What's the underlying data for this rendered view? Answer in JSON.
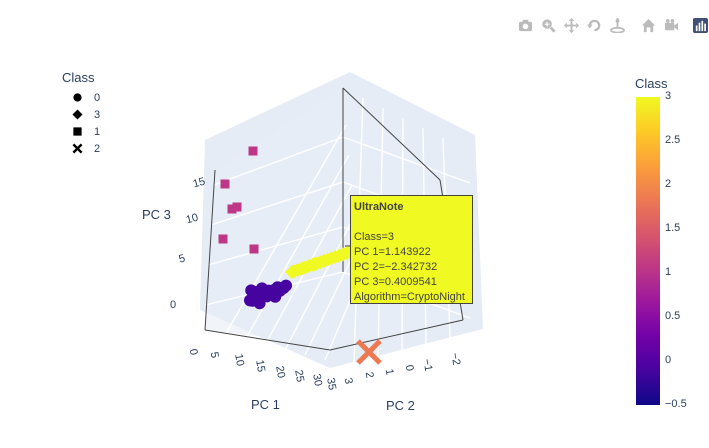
{
  "chart_data": {
    "type": "scatter",
    "title": "",
    "axes": {
      "x": {
        "label": "PC 1",
        "ticks": [
          "0",
          "5",
          "10",
          "15",
          "20",
          "25",
          "30",
          "35"
        ]
      },
      "y": {
        "label": "PC 2",
        "ticks": [
          "3",
          "2",
          "1",
          "0",
          "−1",
          "−2"
        ]
      },
      "z": {
        "label": "PC 3",
        "ticks": [
          "0",
          "5",
          "10",
          "15"
        ]
      }
    },
    "legend": {
      "title": "Class",
      "entries": [
        {
          "label": "0",
          "symbol": "circle"
        },
        {
          "label": "3",
          "symbol": "diamond"
        },
        {
          "label": "1",
          "symbol": "square"
        },
        {
          "label": "2",
          "symbol": "x"
        }
      ]
    },
    "colorbar": {
      "title": "Class",
      "range": [
        -0.5,
        3
      ],
      "ticks": [
        "3",
        "2.5",
        "2",
        "1.5",
        "1",
        "0.5",
        "0",
        "−0.5"
      ],
      "colors": [
        "#0d0887",
        "#46039f",
        "#7201a8",
        "#9c179e",
        "#bd3786",
        "#d8576b",
        "#ed7953",
        "#fb9f3a",
        "#fdca26",
        "#f0f921"
      ]
    },
    "series": [
      {
        "name": "0",
        "class": 0,
        "symbol": "circle",
        "color": "#46039f",
        "points": [
          [
            -0.3,
            0.4,
            -0.2
          ],
          [
            -0.2,
            0.6,
            0.1
          ],
          [
            0,
            0.4,
            0
          ],
          [
            0.4,
            0.2,
            0.3
          ],
          [
            0.8,
            0,
            0.5
          ],
          [
            1.2,
            -0.2,
            0.7
          ],
          [
            1.5,
            -0.5,
            1.0
          ],
          [
            1.8,
            -0.7,
            1.3
          ],
          [
            0.2,
            0.9,
            0.2
          ],
          [
            0.6,
            0.7,
            0.4
          ],
          [
            1.0,
            0.5,
            0.6
          ],
          [
            -0.5,
            0.2,
            -0.1
          ],
          [
            0.3,
            0.1,
            -0.3
          ],
          [
            0.9,
            0.3,
            0.2
          ],
          [
            1.4,
            0.1,
            0.4
          ],
          [
            2.0,
            -0.4,
            0.9
          ],
          [
            2.3,
            -0.6,
            1.2
          ],
          [
            -0.1,
            0.8,
            0.4
          ],
          [
            0.7,
            1.0,
            0.3
          ],
          [
            1.1,
            0.8,
            0.5
          ],
          [
            -0.4,
            0.9,
            0.5
          ],
          [
            0.5,
            0.5,
            0.8
          ],
          [
            1.6,
            -0.1,
            0.3
          ],
          [
            2.5,
            -0.9,
            1.5
          ],
          [
            0.1,
            0.2,
            0.6
          ]
        ]
      },
      {
        "name": "3",
        "class": 3,
        "symbol": "diamond",
        "color": "#f0f921",
        "points": [
          [
            1.14,
            -2.34,
            0.4
          ],
          [
            1.3,
            -2.1,
            0.8
          ],
          [
            1.5,
            -1.9,
            1.2
          ],
          [
            1.7,
            -1.6,
            1.6
          ],
          [
            1.9,
            -1.4,
            2.0
          ],
          [
            2.1,
            -1.2,
            2.4
          ],
          [
            2.3,
            -1.0,
            2.8
          ],
          [
            2.5,
            -0.8,
            3.2
          ],
          [
            2.7,
            -0.6,
            3.6
          ],
          [
            1.0,
            -2.2,
            0.6
          ],
          [
            1.2,
            -2.0,
            1.0
          ],
          [
            1.4,
            -1.8,
            1.4
          ],
          [
            1.6,
            -1.5,
            1.8
          ],
          [
            1.8,
            -1.3,
            2.2
          ],
          [
            2.0,
            -1.1,
            2.6
          ],
          [
            2.2,
            -0.9,
            3.0
          ],
          [
            2.4,
            -0.7,
            3.4
          ],
          [
            1.25,
            -2.25,
            0.3
          ],
          [
            1.55,
            -2.0,
            0.9
          ],
          [
            1.85,
            -1.7,
            1.5
          ]
        ]
      },
      {
        "name": "1",
        "class": 1,
        "symbol": "square",
        "color": "#bd3786",
        "points": [
          [
            5,
            4,
            16
          ],
          [
            4,
            3.3,
            12
          ],
          [
            6,
            3.6,
            12
          ],
          [
            5,
            3.5,
            9
          ],
          [
            10,
            3,
            12
          ],
          [
            3,
            3.6,
            16
          ]
        ]
      },
      {
        "name": "2",
        "class": 2,
        "symbol": "x",
        "color": "#ed7953",
        "points": [
          [
            37,
            0.6,
            -1
          ]
        ]
      }
    ],
    "hover": {
      "name": "UltraNote",
      "lines": [
        "Class=3",
        "PC 1=1.143922",
        "PC 2=−2.342732",
        "PC 3=0.4009541",
        "Algorithm=CryptoNight"
      ]
    }
  },
  "modebar": {
    "buttons": [
      "camera-icon",
      "zoom-icon",
      "pan-icon",
      "orbit-icon",
      "turntable-icon",
      "reset-camera-icon",
      "camera-last-save-icon",
      "plotly-logo-icon"
    ]
  }
}
